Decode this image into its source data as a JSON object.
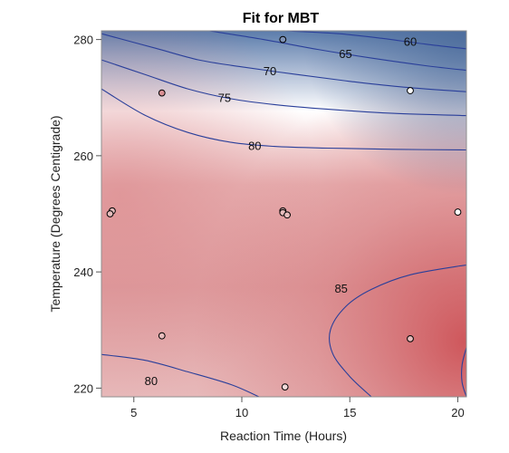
{
  "chart_data": {
    "type": "contour",
    "title": "Fit for MBT",
    "xlabel": "Reaction Time (Hours)",
    "ylabel": "Temperature (Degrees Centigrade)",
    "xlim": [
      3.5,
      20.4
    ],
    "ylim": [
      218.5,
      281.5
    ],
    "x_ticks": [
      5,
      10,
      15,
      20
    ],
    "y_ticks": [
      220,
      240,
      260,
      280
    ],
    "colors": {
      "high": "#c94b4f",
      "mid": "#ffffff",
      "low": "#4a6a9a",
      "contour": "#2a3f9a"
    },
    "contours": [
      {
        "level": "60",
        "label": "60",
        "points": [
          [
            12.0,
            281.5
          ],
          [
            14.5,
            281.0
          ],
          [
            16.5,
            280.2
          ],
          [
            18.5,
            279.2
          ],
          [
            20.4,
            278.4
          ]
        ],
        "label_at": [
          17.8,
          279.7
        ]
      },
      {
        "level": "65",
        "label": "65",
        "points": [
          [
            8.5,
            281.5
          ],
          [
            11.0,
            280.0
          ],
          [
            13.5,
            278.3
          ],
          [
            16.0,
            276.8
          ],
          [
            18.5,
            275.5
          ],
          [
            20.4,
            274.7
          ]
        ],
        "label_at": [
          14.8,
          277.6
        ]
      },
      {
        "level": "70",
        "label": "70",
        "points": [
          [
            3.5,
            281.0
          ],
          [
            6.0,
            278.5
          ],
          [
            8.0,
            276.5
          ],
          [
            10.0,
            275.3
          ],
          [
            12.5,
            274.0
          ],
          [
            15.0,
            272.8
          ],
          [
            17.5,
            271.8
          ],
          [
            20.4,
            271.0
          ]
        ],
        "label_at": [
          11.3,
          274.6
        ]
      },
      {
        "level": "75",
        "label": "75",
        "points": [
          [
            3.5,
            276.5
          ],
          [
            5.5,
            274.0
          ],
          [
            7.5,
            271.5
          ],
          [
            9.5,
            269.8
          ],
          [
            11.5,
            268.8
          ],
          [
            14.0,
            268.0
          ],
          [
            17.0,
            267.3
          ],
          [
            20.4,
            266.9
          ]
        ],
        "label_at": [
          9.2,
          270.0
        ]
      },
      {
        "level": "80",
        "label": "80",
        "points": [
          [
            3.5,
            271.5
          ],
          [
            5.5,
            267.0
          ],
          [
            7.5,
            264.0
          ],
          [
            9.5,
            262.3
          ],
          [
            11.5,
            261.6
          ],
          [
            14.0,
            261.3
          ],
          [
            17.0,
            261.1
          ],
          [
            20.4,
            261.0
          ]
        ],
        "label_at": [
          10.6,
          261.8
        ]
      },
      {
        "level": "80",
        "label": "80",
        "points": [
          [
            3.5,
            225.8
          ],
          [
            5.5,
            224.8
          ],
          [
            7.5,
            222.8
          ],
          [
            9.5,
            220.6
          ],
          [
            10.8,
            218.5
          ]
        ],
        "label_at": [
          5.8,
          221.3
        ]
      },
      {
        "level": "85",
        "label": "85",
        "points": [
          [
            16.0,
            218.5
          ],
          [
            15.0,
            222.0
          ],
          [
            14.2,
            226.0
          ],
          [
            14.1,
            230.0
          ],
          [
            14.8,
            234.0
          ],
          [
            16.0,
            237.0
          ],
          [
            17.8,
            239.5
          ],
          [
            20.4,
            241.2
          ]
        ],
        "label_at": [
          14.6,
          237.2
        ]
      },
      {
        "level": "85+",
        "label": "",
        "points": [
          [
            20.4,
            227.0
          ],
          [
            20.2,
            224.0
          ],
          [
            20.2,
            221.0
          ],
          [
            20.4,
            218.5
          ]
        ],
        "label_at": null
      }
    ],
    "points": [
      {
        "x": 4.0,
        "y": 250.5,
        "fill": "#e6bcbc"
      },
      {
        "x": 3.9,
        "y": 250.0,
        "fill": "#e6bcbc"
      },
      {
        "x": 6.3,
        "y": 270.8,
        "fill": "#d98f93"
      },
      {
        "x": 6.3,
        "y": 229.0,
        "fill": "#e6bcbc"
      },
      {
        "x": 11.9,
        "y": 280.0,
        "fill": "#7f93b7"
      },
      {
        "x": 11.9,
        "y": 250.5,
        "fill": "#e6bcbc"
      },
      {
        "x": 11.9,
        "y": 250.2,
        "fill": "#e6bcbc"
      },
      {
        "x": 12.1,
        "y": 249.8,
        "fill": "#e6bcbc"
      },
      {
        "x": 12.0,
        "y": 220.2,
        "fill": "#f2dada"
      },
      {
        "x": 17.8,
        "y": 271.2,
        "fill": "#ffffff"
      },
      {
        "x": 17.8,
        "y": 228.5,
        "fill": "#e6bcbc"
      },
      {
        "x": 20.0,
        "y": 250.3,
        "fill": "#ffffff"
      }
    ]
  }
}
